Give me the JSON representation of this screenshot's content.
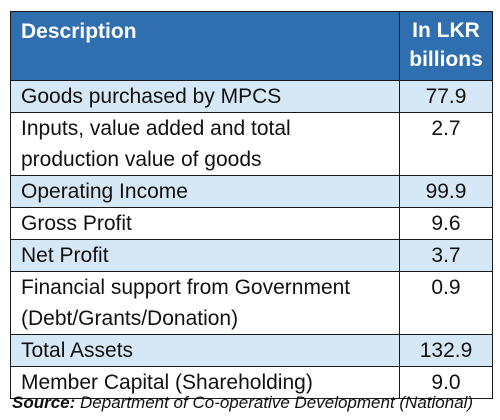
{
  "table": {
    "header": {
      "description": "Description",
      "unit_line1": "In LKR",
      "unit_line2": "billions"
    },
    "rows": [
      {
        "label_lines": [
          "Goods purchased by MPCS"
        ],
        "value": "77.9",
        "shaded": true
      },
      {
        "label_lines": [
          "Inputs, value added and total",
          "production value of goods"
        ],
        "value": "2.7",
        "shaded": false
      },
      {
        "label_lines": [
          "Operating Income"
        ],
        "value": "99.9",
        "shaded": true
      },
      {
        "label_lines": [
          "Gross Profit"
        ],
        "value": "9.6",
        "shaded": false
      },
      {
        "label_lines": [
          "Net Profit"
        ],
        "value": "3.7",
        "shaded": true
      },
      {
        "label_lines": [
          "Financial support from Government",
          "(Debt/Grants/Donation)"
        ],
        "value": "0.9",
        "shaded": false
      },
      {
        "label_lines": [
          "Total Assets"
        ],
        "value": "132.9",
        "shaded": true
      },
      {
        "label_lines": [
          "Member Capital (Shareholding)"
        ],
        "value": "9.0",
        "shaded": false
      }
    ]
  },
  "source": {
    "label": "Source:",
    "text": " Department of Co-operative Development (National)"
  },
  "colors": {
    "header_bg": "#2f6fb0",
    "shaded_row_bg": "#d6e7f5",
    "border": "#1a1a1a"
  }
}
